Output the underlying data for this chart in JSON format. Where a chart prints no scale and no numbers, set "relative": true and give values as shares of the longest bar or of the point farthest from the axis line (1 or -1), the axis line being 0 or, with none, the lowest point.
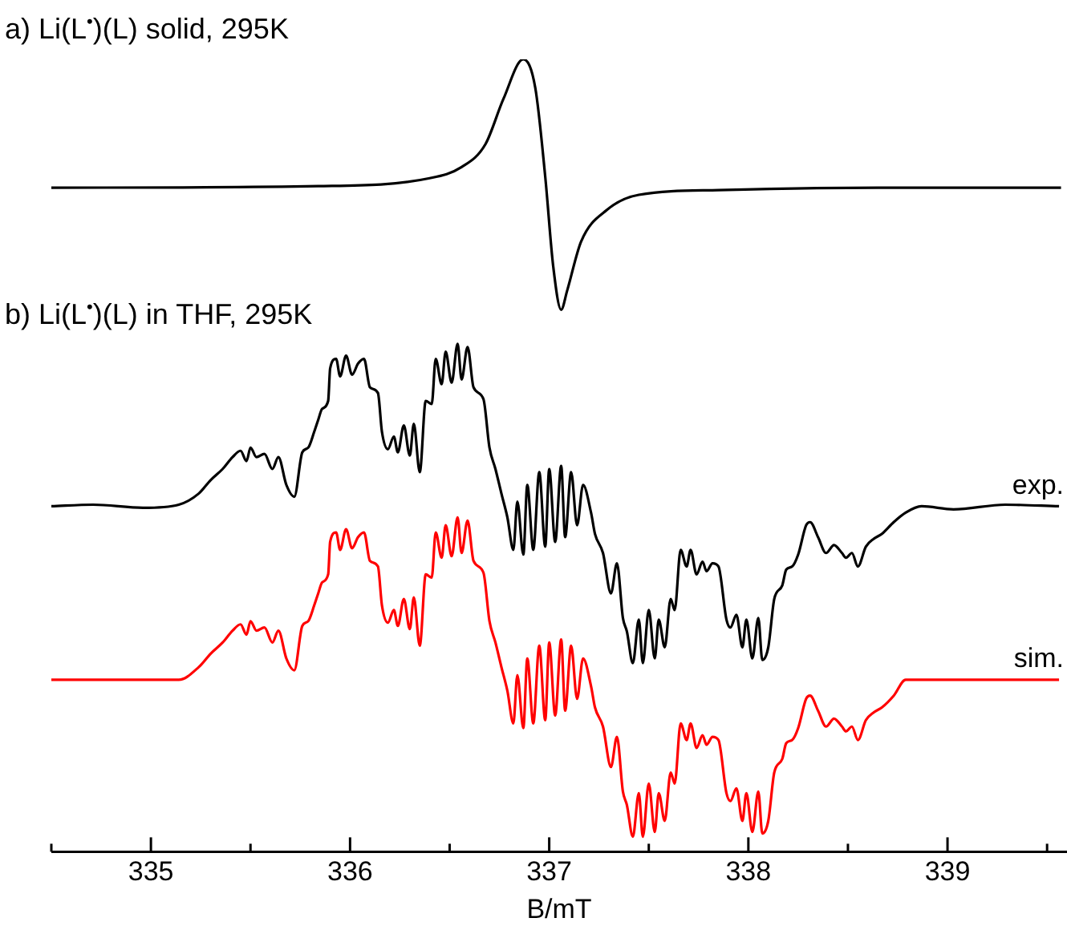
{
  "chart_data": {
    "type": "line",
    "xlabel": "B/mT",
    "relative": true,
    "legend": false,
    "grid": false,
    "tick_labels": "x",
    "marker": "none",
    "line_style": "solid",
    "annotations": [
      "a) Li(L$^{•}$)(L) solid, 295K",
      "b) Li(L$^{•}$)(L) in THF, 295K"
    ],
    "xlim": [
      334.5,
      339.6
    ],
    "xticks": [
      {
        "value": 334.5,
        "label": null
      },
      335,
      {
        "value": 335.5,
        "label": null
      },
      336,
      {
        "value": 336.5,
        "label": null
      },
      337,
      {
        "value": 337.5,
        "label": null
      },
      338,
      {
        "value": 338.5,
        "label": null
      },
      339,
      {
        "value": 339.5,
        "label": null
      }
    ],
    "x": [
      334.5,
      334.71,
      334.96,
      335.14,
      335.24,
      335.3,
      335.36,
      335.41,
      335.45,
      335.48,
      335.5,
      335.53,
      335.57,
      335.61,
      335.64,
      335.68,
      335.72,
      335.76,
      335.79,
      335.82,
      335.84,
      335.86,
      335.89,
      335.9,
      335.93,
      335.95,
      335.98,
      336.01,
      336.04,
      336.07,
      336.1,
      336.14,
      336.16,
      336.19,
      336.22,
      336.24,
      336.27,
      336.3,
      336.32,
      336.35,
      336.38,
      336.41,
      336.43,
      336.46,
      336.48,
      336.51,
      336.54,
      336.56,
      336.59,
      336.62,
      336.67,
      336.7,
      336.73,
      336.76,
      336.79,
      336.82,
      336.84,
      336.87,
      336.89,
      336.92,
      336.95,
      336.98,
      337.0,
      337.03,
      337.06,
      337.08,
      337.11,
      337.14,
      337.17,
      337.21,
      337.23,
      337.27,
      337.31,
      337.34,
      337.37,
      337.39,
      337.42,
      337.45,
      337.47,
      337.5,
      337.53,
      337.55,
      337.58,
      337.61,
      337.63,
      337.66,
      337.69,
      337.71,
      337.74,
      337.77,
      337.79,
      337.82,
      337.85,
      337.89,
      337.91,
      337.94,
      337.97,
      337.99,
      338.02,
      338.05,
      338.07,
      338.1,
      338.13,
      338.17,
      338.19,
      338.22,
      338.25,
      338.29,
      338.31,
      338.35,
      338.39,
      338.43,
      338.47,
      338.49,
      338.52,
      338.55,
      338.59,
      338.63,
      338.67,
      338.73,
      338.79,
      338.87,
      339.03,
      339.29,
      339.56
    ],
    "series": [
      {
        "color": "#000000",
        "x": [
          334.5,
          335.84,
          336.4,
          336.56,
          336.68,
          336.77,
          336.87,
          336.93,
          336.98,
          337.02,
          337.06,
          337.09,
          337.16,
          337.29,
          337.45,
          337.85,
          338.65,
          339.57
        ],
        "values": [
          0.838,
          0.84,
          0.85,
          0.864,
          0.893,
          0.95,
          1.0,
          0.964,
          0.852,
          0.739,
          0.684,
          0.708,
          0.77,
          0.81,
          0.829,
          0.835,
          0.838,
          0.838
        ]
      },
      {
        "name": "exp.",
        "color": "#000000",
        "values": [
          0.436,
          0.438,
          0.434,
          0.438,
          0.452,
          0.469,
          0.483,
          0.498,
          0.506,
          0.493,
          0.51,
          0.498,
          0.502,
          0.483,
          0.498,
          0.463,
          0.448,
          0.504,
          0.51,
          0.53,
          0.545,
          0.559,
          0.569,
          0.61,
          0.622,
          0.6,
          0.626,
          0.602,
          0.616,
          0.622,
          0.586,
          0.579,
          0.53,
          0.508,
          0.524,
          0.504,
          0.538,
          0.5,
          0.54,
          0.479,
          0.569,
          0.565,
          0.622,
          0.59,
          0.631,
          0.592,
          0.641,
          0.596,
          0.637,
          0.586,
          0.571,
          0.51,
          0.483,
          0.452,
          0.422,
          0.381,
          0.442,
          0.375,
          0.463,
          0.381,
          0.479,
          0.385,
          0.483,
          0.391,
          0.487,
          0.397,
          0.479,
          0.412,
          0.463,
          0.428,
          0.401,
          0.377,
          0.326,
          0.364,
          0.295,
          0.278,
          0.238,
          0.293,
          0.238,
          0.305,
          0.244,
          0.293,
          0.258,
          0.319,
          0.305,
          0.381,
          0.36,
          0.381,
          0.35,
          0.366,
          0.354,
          0.364,
          0.36,
          0.293,
          0.283,
          0.299,
          0.258,
          0.293,
          0.244,
          0.295,
          0.242,
          0.258,
          0.319,
          0.336,
          0.356,
          0.36,
          0.375,
          0.412,
          0.416,
          0.397,
          0.377,
          0.387,
          0.377,
          0.371,
          0.377,
          0.36,
          0.385,
          0.395,
          0.401,
          0.416,
          0.428,
          0.436,
          0.432,
          0.438,
          0.436
        ]
      },
      {
        "name": "sim.",
        "color": "#ff0000",
        "values": [
          0.217,
          0.217,
          0.217,
          0.217,
          0.233,
          0.25,
          0.264,
          0.279,
          0.287,
          0.274,
          0.291,
          0.279,
          0.283,
          0.264,
          0.279,
          0.244,
          0.229,
          0.285,
          0.291,
          0.311,
          0.326,
          0.34,
          0.35,
          0.391,
          0.403,
          0.381,
          0.407,
          0.383,
          0.397,
          0.403,
          0.367,
          0.36,
          0.311,
          0.289,
          0.305,
          0.285,
          0.319,
          0.281,
          0.321,
          0.26,
          0.35,
          0.346,
          0.403,
          0.371,
          0.412,
          0.373,
          0.422,
          0.377,
          0.418,
          0.367,
          0.352,
          0.291,
          0.264,
          0.233,
          0.203,
          0.162,
          0.223,
          0.156,
          0.244,
          0.162,
          0.26,
          0.166,
          0.264,
          0.172,
          0.268,
          0.178,
          0.26,
          0.193,
          0.244,
          0.209,
          0.182,
          0.158,
          0.107,
          0.145,
          0.076,
          0.059,
          0.019,
          0.074,
          0.019,
          0.086,
          0.025,
          0.074,
          0.039,
          0.1,
          0.086,
          0.162,
          0.141,
          0.162,
          0.131,
          0.147,
          0.135,
          0.145,
          0.141,
          0.074,
          0.064,
          0.08,
          0.039,
          0.074,
          0.025,
          0.076,
          0.023,
          0.039,
          0.1,
          0.117,
          0.137,
          0.141,
          0.156,
          0.193,
          0.197,
          0.178,
          0.158,
          0.168,
          0.158,
          0.152,
          0.158,
          0.141,
          0.166,
          0.176,
          0.182,
          0.197,
          0.217,
          0.217,
          0.217,
          0.217,
          0.217
        ]
      }
    ]
  }
}
